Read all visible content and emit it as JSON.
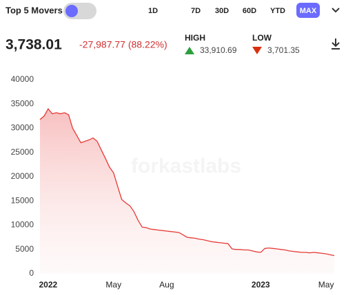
{
  "header": {
    "toggle_label": "Top 5 Movers",
    "ranges": [
      "1D",
      "7D",
      "30D",
      "60D",
      "YTD",
      "MAX"
    ],
    "active_range": "MAX"
  },
  "summary": {
    "price": "3,738.01",
    "change": "-27,987.77 (88.22%)",
    "high_label": "HIGH",
    "high_value": "33,910.69",
    "low_label": "LOW",
    "low_value": "3,701.35"
  },
  "watermark": "forkastlabs",
  "chart_data": {
    "type": "area",
    "color": "#e53935",
    "categories": [
      null,
      null,
      "2022",
      null,
      null,
      null,
      null,
      null,
      null,
      null,
      null,
      null,
      null,
      null,
      null,
      null,
      null,
      null,
      "May",
      null,
      null,
      null,
      null,
      null,
      null,
      null,
      null,
      null,
      null,
      null,
      null,
      "Aug",
      null,
      null,
      null,
      null,
      null,
      null,
      null,
      null,
      null,
      null,
      null,
      null,
      null,
      null,
      null,
      null,
      null,
      null,
      null,
      null,
      null,
      null,
      "2023",
      null,
      null,
      null,
      null,
      null,
      null,
      null,
      null,
      null,
      null,
      null,
      null,
      null,
      null,
      null,
      "May",
      null,
      null
    ],
    "values": [
      31800,
      32500,
      34000,
      33000,
      33200,
      33000,
      33200,
      32800,
      30000,
      28500,
      27000,
      27300,
      27600,
      28000,
      27300,
      25500,
      23800,
      22000,
      20800,
      18000,
      15300,
      14600,
      14000,
      12800,
      11000,
      9600,
      9500,
      9200,
      9100,
      9000,
      8900,
      8800,
      8700,
      8600,
      8500,
      8000,
      7500,
      7400,
      7300,
      7100,
      7000,
      6800,
      6600,
      6500,
      6400,
      6300,
      6200,
      5100,
      5000,
      5000,
      4900,
      4900,
      4700,
      4500,
      4400,
      5200,
      5300,
      5200,
      5100,
      5000,
      4900,
      4700,
      4600,
      4500,
      4400,
      4400,
      4300,
      4400,
      4300,
      4200,
      4100,
      3900,
      3738.01
    ],
    "ylim": [
      0,
      40000
    ],
    "yticks": [
      0,
      5000,
      10000,
      15000,
      20000,
      25000,
      30000,
      35000,
      40000
    ],
    "grid": false
  }
}
